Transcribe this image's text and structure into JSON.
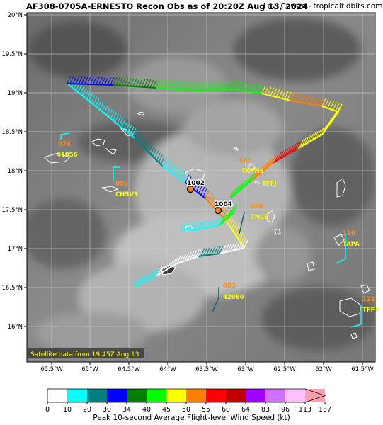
{
  "header": {
    "title": "AF308-0705A-ERNESTO Recon Obs as of 20:20Z Aug 13, 2024",
    "credit": "Levi Cowan - tropicaltidbits.com"
  },
  "map": {
    "lat_labels": [
      "20°N",
      "19.5°N",
      "19°N",
      "18.5°N",
      "18°N",
      "17.5°N",
      "17°N",
      "16.5°N",
      "16°N"
    ],
    "lon_labels": [
      "65.5°W",
      "65°W",
      "64.5°W",
      "64°W",
      "63.5°W",
      "63°W",
      "62.5°W",
      "62°W",
      "61.5°W"
    ],
    "satellite_note": "Satellite data from 19:45Z Aug 13",
    "pressure_labels": [
      "1002",
      "1004"
    ],
    "stations": [
      {
        "id": "41056",
        "value": "078"
      },
      {
        "id": "CHSV3",
        "value": "080"
      },
      {
        "id": "TKPN6",
        "value": "080"
      },
      {
        "id": "TFFJ",
        "value": ""
      },
      {
        "id": "TNCE",
        "value": "080"
      },
      {
        "id": "TAPA",
        "value": "110"
      },
      {
        "id": "42060",
        "value": "083"
      },
      {
        "id": "TFFF",
        "value": "121"
      }
    ]
  },
  "colorbar": {
    "ticks": [
      "0",
      "10",
      "20",
      "30",
      "34",
      "40",
      "45",
      "50",
      "55",
      "60",
      "64",
      "83",
      "96",
      "113",
      "137"
    ],
    "colors": [
      "#ffffff",
      "#00ffff",
      "#008080",
      "#0000ff",
      "#008000",
      "#00ff00",
      "#ffff00",
      "#ff8000",
      "#ff0000",
      "#c00000",
      "#a000ff",
      "#d070ff",
      "#ffc0ff",
      "#ffa0b0"
    ],
    "label": "Peak 10-second Average Flight-level Wind Speed (kt)"
  }
}
